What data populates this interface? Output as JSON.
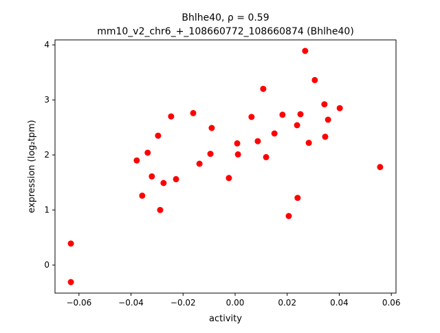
{
  "chart_data": {
    "type": "scatter",
    "title_line1": "Bhlhe40, ρ = 0.59",
    "title_line2": "mm10_v2_chr6_+_108660772_108660874 (Bhlhe40)",
    "xlabel": "activity",
    "ylabel": "expression (log₂tpm)",
    "xlim": [
      -0.0692,
      0.0618
    ],
    "ylim": [
      -0.51,
      4.09
    ],
    "xticks": [
      -0.06,
      -0.04,
      -0.02,
      0.0,
      0.02,
      0.04,
      0.06
    ],
    "xtick_labels": [
      "−0.06",
      "−0.04",
      "−0.02",
      "0.00",
      "0.02",
      "0.04",
      "0.06"
    ],
    "yticks": [
      0,
      1,
      2,
      3,
      4
    ],
    "ytick_labels": [
      "0",
      "1",
      "2",
      "3",
      "4"
    ],
    "grid": false,
    "marker_color": "#ff0000",
    "points": [
      [
        -0.0631,
        0.39
      ],
      [
        -0.0631,
        -0.31
      ],
      [
        -0.0378,
        1.9
      ],
      [
        -0.0357,
        1.26
      ],
      [
        -0.0336,
        2.04
      ],
      [
        -0.032,
        1.61
      ],
      [
        -0.0296,
        2.35
      ],
      [
        -0.0288,
        1.0
      ],
      [
        -0.0275,
        1.49
      ],
      [
        -0.0246,
        2.7
      ],
      [
        -0.0227,
        1.56
      ],
      [
        -0.0161,
        2.76
      ],
      [
        -0.0137,
        1.84
      ],
      [
        -0.0095,
        2.02
      ],
      [
        -0.009,
        2.49
      ],
      [
        -0.0024,
        1.58
      ],
      [
        0.0008,
        2.21
      ],
      [
        0.0011,
        2.01
      ],
      [
        0.0063,
        2.69
      ],
      [
        0.0087,
        2.25
      ],
      [
        0.0108,
        3.2
      ],
      [
        0.0119,
        1.96
      ],
      [
        0.0151,
        2.39
      ],
      [
        0.0182,
        2.73
      ],
      [
        0.0206,
        0.89
      ],
      [
        0.0238,
        2.54
      ],
      [
        0.024,
        1.22
      ],
      [
        0.0251,
        2.74
      ],
      [
        0.0269,
        3.89
      ],
      [
        0.0283,
        2.22
      ],
      [
        0.0306,
        3.36
      ],
      [
        0.0343,
        2.92
      ],
      [
        0.0346,
        2.33
      ],
      [
        0.0357,
        2.64
      ],
      [
        0.0402,
        2.85
      ],
      [
        0.0557,
        1.78
      ]
    ]
  }
}
